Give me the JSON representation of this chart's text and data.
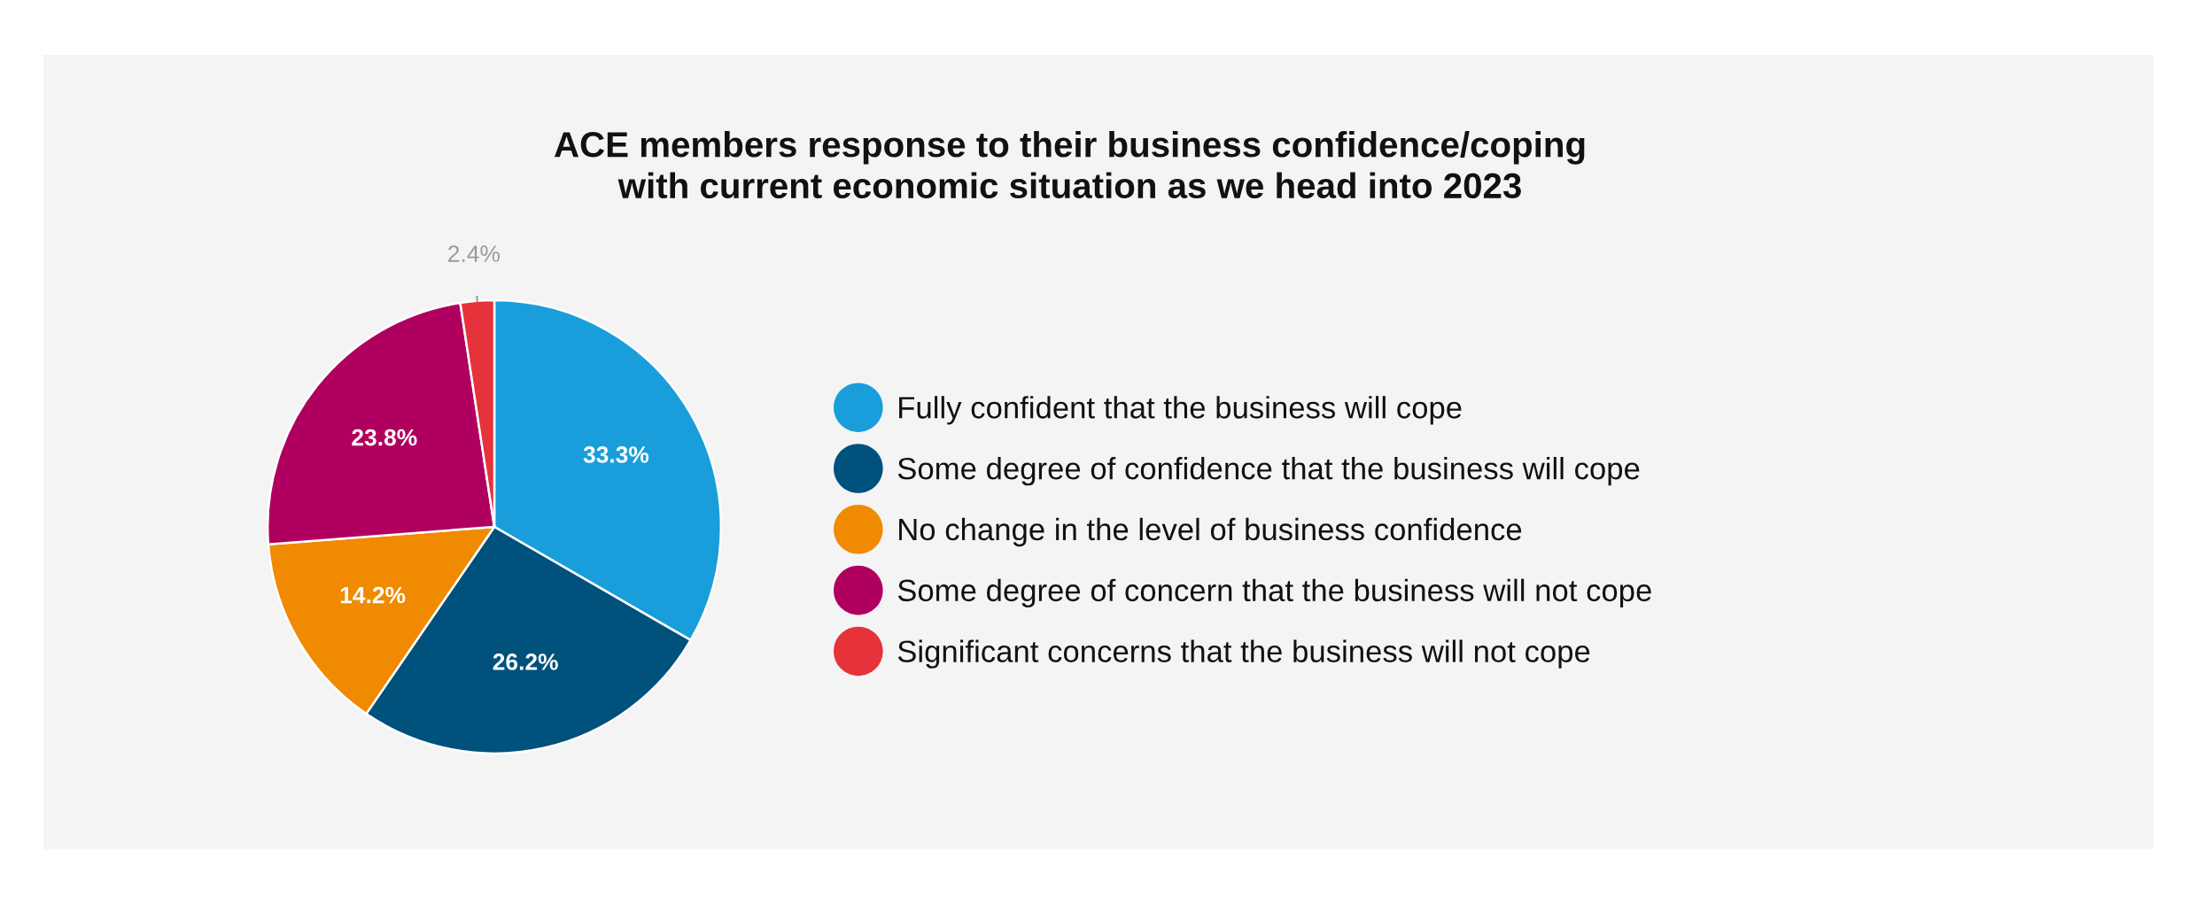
{
  "chart_data": {
    "type": "pie",
    "title": "ACE members response to their business confidence/coping\nwith current economic situation as we head into 2023",
    "categories": [
      "Fully confident that the business will cope",
      "Some degree of confidence that the business will cope",
      "No change in the level of business confidence",
      "Some degree of concern that the business will not cope",
      "Significant concerns that the business will not cope"
    ],
    "values": [
      33.3,
      26.2,
      14.2,
      23.8,
      2.4
    ],
    "colors": [
      "#1a9edb",
      "#00517c",
      "#f08a00",
      "#b0005f",
      "#e5323b"
    ],
    "value_labels": [
      "33.3%",
      "26.2%",
      "14.2%",
      "23.8%",
      "2.4%"
    ],
    "legend": "right"
  }
}
